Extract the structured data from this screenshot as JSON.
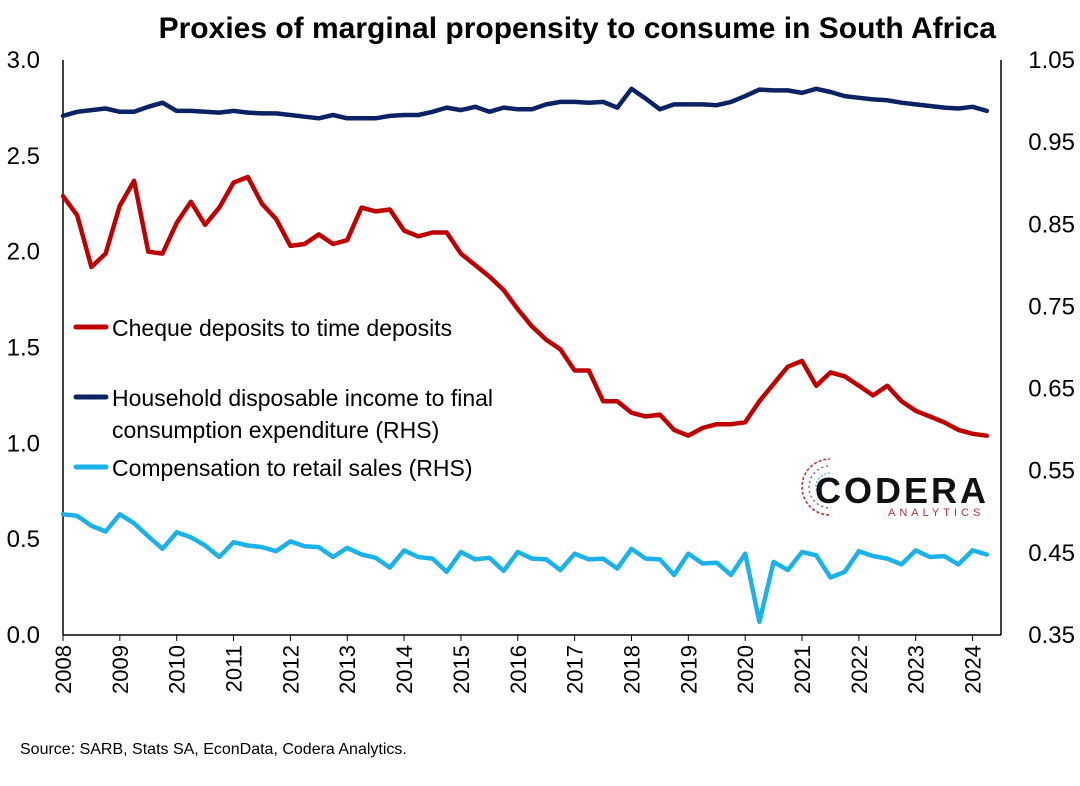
{
  "chart_data": {
    "type": "line",
    "title": "Proxies of marginal propensity to consume in South Africa",
    "source": "Source: SARB, Stats SA, EconData, Codera Analytics.",
    "y_left": {
      "min": 0.0,
      "max": 3.0,
      "ticks": [
        "0.0",
        "0.5",
        "1.0",
        "1.5",
        "2.0",
        "2.5",
        "3.0"
      ],
      "tick_values": [
        0,
        0.5,
        1,
        1.5,
        2,
        2.5,
        3
      ]
    },
    "y_right": {
      "min": 0.35,
      "max": 1.05,
      "ticks": [
        "0.35",
        "0.45",
        "0.55",
        "0.65",
        "0.75",
        "0.85",
        "0.95",
        "1.05"
      ],
      "tick_values": [
        0.35,
        0.45,
        0.55,
        0.65,
        0.75,
        0.85,
        0.95,
        1.05
      ]
    },
    "x": {
      "start": 2008.0,
      "end": 2024.5,
      "ticks": [
        "2008",
        "2009",
        "2010",
        "2011",
        "2012",
        "2013",
        "2014",
        "2015",
        "2016",
        "2017",
        "2018",
        "2019",
        "2020",
        "2021",
        "2022",
        "2023",
        "2024"
      ],
      "tick_values": [
        2008,
        2009,
        2010,
        2011,
        2012,
        2013,
        2014,
        2015,
        2016,
        2017,
        2018,
        2019,
        2020,
        2021,
        2022,
        2023,
        2024
      ]
    },
    "x_start": 2008.0,
    "x_step": 0.25,
    "series": [
      {
        "name": "Cheque deposits to time deposits",
        "axis": "left",
        "color": "#c00000",
        "values": [
          2.29,
          2.19,
          1.92,
          1.99,
          2.24,
          2.37,
          2.0,
          1.99,
          2.15,
          2.26,
          2.14,
          2.23,
          2.36,
          2.39,
          2.25,
          2.17,
          2.03,
          2.04,
          2.09,
          2.04,
          2.06,
          2.23,
          2.21,
          2.22,
          2.11,
          2.08,
          2.1,
          2.1,
          1.99,
          1.93,
          1.87,
          1.8,
          1.7,
          1.61,
          1.54,
          1.49,
          1.38,
          1.38,
          1.22,
          1.22,
          1.16,
          1.14,
          1.15,
          1.07,
          1.04,
          1.08,
          1.1,
          1.1,
          1.11,
          1.22,
          1.31,
          1.4,
          1.43,
          1.3,
          1.37,
          1.35,
          1.3,
          1.25,
          1.3,
          1.22,
          1.17,
          1.14,
          1.11,
          1.07,
          1.05,
          1.04
        ]
      },
      {
        "name": "Household disposable income to final consumption expenditure (RHS)",
        "axis": "right",
        "color": "#0b2265",
        "values": [
          0.982,
          0.987,
          0.989,
          0.991,
          0.987,
          0.987,
          0.993,
          0.998,
          0.988,
          0.988,
          0.987,
          0.986,
          0.988,
          0.986,
          0.985,
          0.985,
          0.983,
          0.981,
          0.979,
          0.983,
          0.979,
          0.979,
          0.979,
          0.982,
          0.983,
          0.983,
          0.987,
          0.992,
          0.989,
          0.993,
          0.987,
          0.992,
          0.99,
          0.99,
          0.996,
          0.999,
          0.999,
          0.998,
          0.999,
          0.992,
          1.015,
          1.003,
          0.99,
          0.996,
          0.996,
          0.996,
          0.995,
          0.999,
          1.006,
          1.014,
          1.013,
          1.013,
          1.01,
          1.015,
          1.011,
          1.006,
          1.004,
          1.002,
          1.001,
          0.998,
          0.996,
          0.994,
          0.992,
          0.991,
          0.993,
          0.988
        ]
      },
      {
        "name": "Compensation to retail sales (RHS)",
        "axis": "right",
        "color": "#1ab2e8",
        "values": [
          0.497,
          0.495,
          0.483,
          0.476,
          0.497,
          0.486,
          0.47,
          0.455,
          0.475,
          0.469,
          0.459,
          0.445,
          0.463,
          0.459,
          0.457,
          0.452,
          0.464,
          0.458,
          0.457,
          0.445,
          0.456,
          0.448,
          0.444,
          0.432,
          0.453,
          0.445,
          0.443,
          0.427,
          0.451,
          0.442,
          0.444,
          0.428,
          0.451,
          0.443,
          0.442,
          0.429,
          0.449,
          0.442,
          0.443,
          0.431,
          0.455,
          0.443,
          0.442,
          0.423,
          0.449,
          0.437,
          0.438,
          0.423,
          0.449,
          0.366,
          0.439,
          0.429,
          0.451,
          0.447,
          0.42,
          0.427,
          0.452,
          0.446,
          0.443,
          0.436,
          0.453,
          0.445,
          0.446,
          0.436,
          0.453,
          0.448
        ]
      }
    ],
    "legend": [
      {
        "lines": [
          "Cheque deposits to time deposits"
        ],
        "color": "#c00000"
      },
      {
        "lines": [
          "Household disposable income to final",
          "consumption expenditure (RHS)"
        ],
        "color": "#0b2265"
      },
      {
        "lines": [
          "Compensation to retail sales (RHS)"
        ],
        "color": "#1ab2e8"
      }
    ]
  },
  "logo": {
    "name": "CODERA",
    "tagline": "ANALYTICS"
  }
}
